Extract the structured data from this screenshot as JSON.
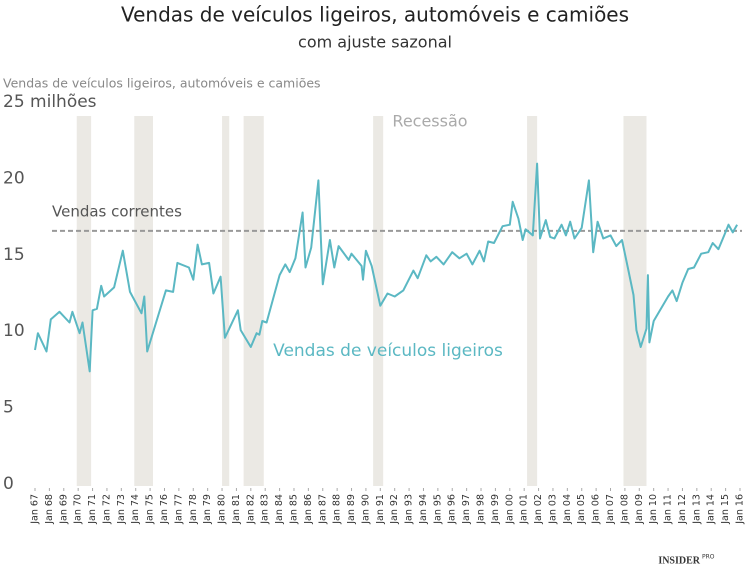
{
  "chart_data": {
    "type": "line",
    "title": "Vendas de veículos ligeiros, automóveis e camiões",
    "subtitle": "com ajuste sazonal",
    "y_label": "Vendas de veículos ligeiros, automóveis e camiões",
    "recession_label": "Recessão",
    "recession_color": "#ebe9e4",
    "recessions": [
      [
        1969.9,
        1970.9
      ],
      [
        1973.9,
        1975.2
      ],
      [
        1980.0,
        1980.5
      ],
      [
        1981.5,
        1982.9
      ],
      [
        1990.5,
        1991.2
      ],
      [
        2001.2,
        2001.9
      ],
      [
        2007.9,
        2009.5
      ]
    ],
    "reference_line": {
      "value": 16.7,
      "label": "Vendas correntes",
      "color": "#999999"
    },
    "x": [
      1967.0,
      1967.2,
      1967.8,
      1968.1,
      1968.7,
      1969.4,
      1969.6,
      1970.1,
      1970.3,
      1970.8,
      1971.0,
      1971.3,
      1971.6,
      1971.8,
      1972.5,
      1973.1,
      1973.6,
      1974.4,
      1974.6,
      1974.8,
      1976.1,
      1976.6,
      1976.9,
      1977.7,
      1978.0,
      1978.3,
      1978.6,
      1979.1,
      1979.4,
      1979.9,
      1980.2,
      1981.1,
      1981.3,
      1982.0,
      1982.4,
      1982.6,
      1982.8,
      1983.1,
      1984.0,
      1984.4,
      1984.7,
      1985.1,
      1985.6,
      1985.8,
      1986.2,
      1986.7,
      1987.0,
      1987.5,
      1987.8,
      1988.1,
      1988.8,
      1989.0,
      1989.7,
      1989.8,
      1990.0,
      1990.4,
      1991.0,
      1991.5,
      1992.0,
      1992.6,
      1993.3,
      1993.6,
      1994.2,
      1994.5,
      1994.9,
      1995.4,
      1996.0,
      1996.5,
      1997.0,
      1997.4,
      1997.9,
      1998.2,
      1998.5,
      1998.9,
      1999.5,
      2000.0,
      2000.2,
      2000.6,
      2000.9,
      2001.1,
      2001.6,
      2001.9,
      2002.1,
      2002.5,
      2002.8,
      2003.1,
      2003.6,
      2003.9,
      2004.2,
      2004.5,
      2005.0,
      2005.5,
      2005.8,
      2006.1,
      2006.5,
      2007.0,
      2007.4,
      2007.8,
      2008.2,
      2008.6,
      2008.8,
      2009.1,
      2009.5,
      2009.6,
      2009.7,
      2010.0,
      2010.5,
      2011.0,
      2011.3,
      2011.6,
      2012.0,
      2012.4,
      2012.8,
      2013.3,
      2013.8,
      2014.1,
      2014.5,
      2014.9,
      2015.2,
      2015.5,
      2015.8
    ],
    "series": [
      {
        "name": "Vendas de veículos ligeiros",
        "color": "#5bb8c3",
        "values": [
          8.9,
          10.0,
          8.8,
          10.9,
          11.4,
          10.7,
          11.4,
          10.0,
          10.7,
          7.5,
          11.5,
          11.6,
          13.1,
          12.4,
          13.0,
          15.4,
          12.7,
          11.3,
          12.4,
          8.8,
          12.8,
          12.7,
          14.6,
          14.3,
          13.5,
          15.8,
          14.5,
          14.6,
          12.6,
          13.7,
          9.7,
          11.5,
          10.2,
          9.1,
          10.0,
          9.9,
          10.8,
          10.7,
          13.8,
          14.5,
          14.0,
          14.9,
          17.9,
          14.3,
          15.6,
          20.0,
          13.2,
          16.1,
          14.3,
          15.7,
          14.8,
          15.2,
          14.4,
          13.5,
          15.4,
          14.4,
          11.8,
          12.6,
          12.4,
          12.8,
          14.1,
          13.6,
          15.1,
          14.7,
          15.0,
          14.5,
          15.3,
          14.9,
          15.2,
          14.5,
          15.4,
          14.7,
          16.0,
          15.9,
          17.0,
          17.1,
          18.6,
          17.5,
          16.1,
          16.8,
          16.4,
          21.1,
          16.2,
          17.4,
          16.3,
          16.2,
          17.1,
          16.4,
          17.3,
          16.2,
          16.9,
          20.0,
          15.3,
          17.3,
          16.2,
          16.4,
          15.7,
          16.1,
          14.3,
          12.5,
          10.2,
          9.1,
          10.3,
          13.8,
          9.4,
          10.8,
          11.6,
          12.4,
          12.8,
          12.1,
          13.3,
          14.2,
          14.3,
          15.2,
          15.3,
          15.9,
          15.5,
          16.4,
          17.1,
          16.6,
          17.1
        ]
      }
    ],
    "xlim": [
      1967,
      2016
    ],
    "xticks": [
      {
        "value": 1967,
        "label": "Jan 67"
      },
      {
        "value": 1968,
        "label": "Jan 68"
      },
      {
        "value": 1969,
        "label": "Jan 69"
      },
      {
        "value": 1970,
        "label": "Jan 70"
      },
      {
        "value": 1971,
        "label": "Jan 71"
      },
      {
        "value": 1972,
        "label": "Jan 72"
      },
      {
        "value": 1973,
        "label": "Jan 73"
      },
      {
        "value": 1974,
        "label": "Jan 74"
      },
      {
        "value": 1975,
        "label": "Jan 75"
      },
      {
        "value": 1976,
        "label": "Jan 76"
      },
      {
        "value": 1977,
        "label": "Jan 77"
      },
      {
        "value": 1978,
        "label": "Jan 78"
      },
      {
        "value": 1979,
        "label": "Jan 79"
      },
      {
        "value": 1980,
        "label": "Jan 80"
      },
      {
        "value": 1981,
        "label": "Jan 81"
      },
      {
        "value": 1982,
        "label": "Jan 82"
      },
      {
        "value": 1983,
        "label": "Jan 83"
      },
      {
        "value": 1984,
        "label": "Jan 84"
      },
      {
        "value": 1985,
        "label": "Jan 85"
      },
      {
        "value": 1986,
        "label": "Jan 86"
      },
      {
        "value": 1987,
        "label": "Jan 87"
      },
      {
        "value": 1988,
        "label": "Jan 88"
      },
      {
        "value": 1989,
        "label": "Jan 89"
      },
      {
        "value": 1990,
        "label": "Jan 90"
      },
      {
        "value": 1991,
        "label": "Jan 91"
      },
      {
        "value": 1992,
        "label": "Jan 92"
      },
      {
        "value": 1993,
        "label": "Jan 93"
      },
      {
        "value": 1994,
        "label": "Jan 94"
      },
      {
        "value": 1995,
        "label": "Jan 95"
      },
      {
        "value": 1996,
        "label": "Jan 96"
      },
      {
        "value": 1997,
        "label": "Jan 97"
      },
      {
        "value": 1998,
        "label": "Jan 98"
      },
      {
        "value": 1999,
        "label": "Jan 99"
      },
      {
        "value": 2000,
        "label": "Jan 00"
      },
      {
        "value": 2001,
        "label": "Jan 01"
      },
      {
        "value": 2002,
        "label": "Jan 02"
      },
      {
        "value": 2003,
        "label": "Jan 03"
      },
      {
        "value": 2004,
        "label": "Jan 04"
      },
      {
        "value": 2005,
        "label": "Jan 05"
      },
      {
        "value": 2006,
        "label": "Jan 06"
      },
      {
        "value": 2007,
        "label": "Jan 07"
      },
      {
        "value": 2008,
        "label": "Jan 08"
      },
      {
        "value": 2009,
        "label": "Jan 09"
      },
      {
        "value": 2010,
        "label": "Jan 10"
      },
      {
        "value": 2011,
        "label": "Jan 11"
      },
      {
        "value": 2012,
        "label": "Jan 12"
      },
      {
        "value": 2013,
        "label": "Jan 13"
      },
      {
        "value": 2014,
        "label": "Jan 14"
      },
      {
        "value": 2015,
        "label": "Jan 15"
      },
      {
        "value": 2016,
        "label": "Jan 16"
      }
    ],
    "ylim": [
      0,
      25
    ],
    "yticks": [
      0,
      5,
      10,
      15,
      20,
      {
        "value": 25,
        "label": "25 milhões"
      }
    ],
    "grid": false,
    "source": {
      "name": "INSIDER",
      "suffix": "PRO"
    }
  }
}
